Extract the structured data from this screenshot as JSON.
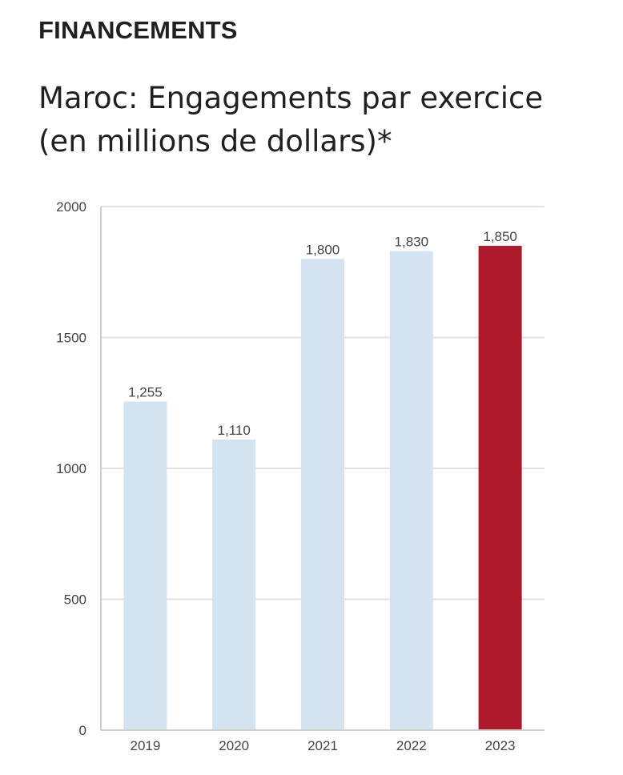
{
  "header": {
    "section_label": "FINANCEMENTS",
    "title_line_1": "Maroc: Engagements par exercice",
    "title_line_2": "(en millions de dollars)*"
  },
  "chart_data": {
    "type": "bar",
    "title": "Maroc: Engagements par exercice (en millions de dollars)*",
    "xlabel": "",
    "ylabel": "",
    "categories": [
      "2019",
      "2020",
      "2021",
      "2022",
      "2023"
    ],
    "values": [
      1255,
      1110,
      1800,
      1830,
      1850
    ],
    "value_labels": [
      "1,255",
      "1,110",
      "1,800",
      "1,830",
      "1,850"
    ],
    "ylim": [
      0,
      2000
    ],
    "yticks": [
      0,
      500,
      1000,
      1500,
      2000
    ],
    "ytick_labels": [
      "0",
      "500",
      "1000",
      "1500",
      "2000"
    ],
    "grid": true,
    "legend": "none",
    "colors": {
      "default_bar": "#d3e3f0",
      "highlight_bar": "#ad1a2c",
      "grid": "#e2e2dc",
      "axis": "#cfcfc8"
    },
    "highlight_category": "2023"
  }
}
